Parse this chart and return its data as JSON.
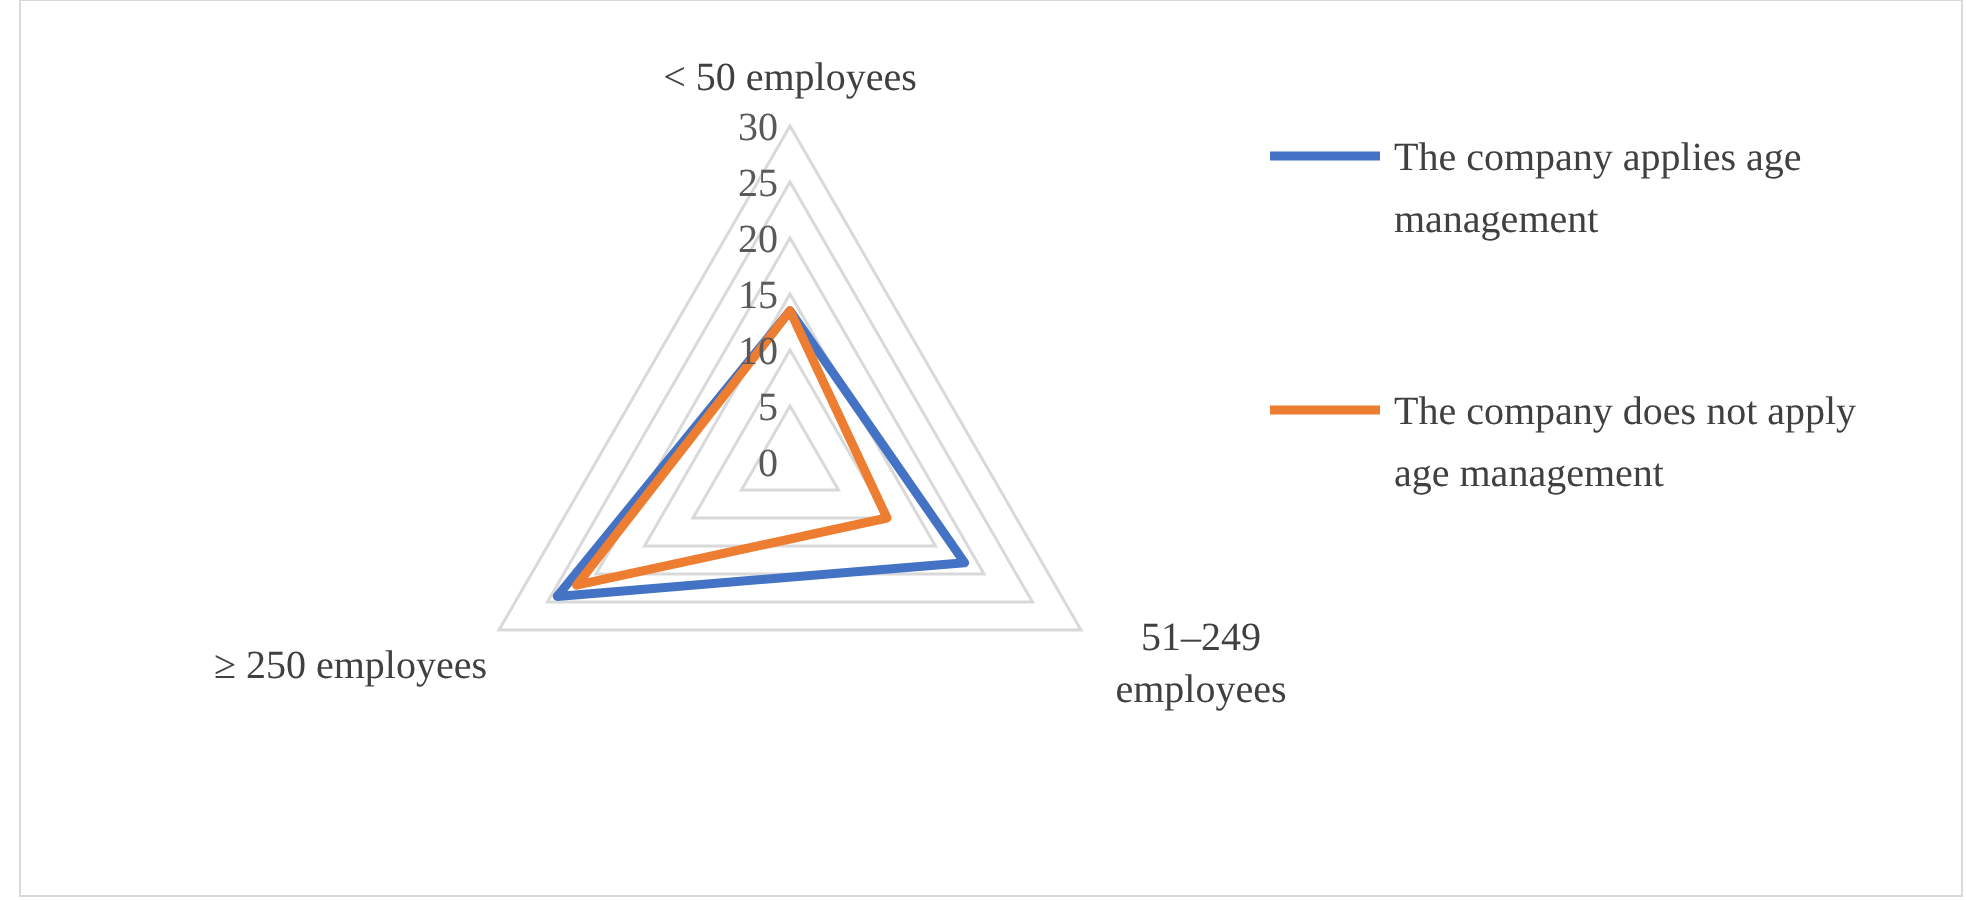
{
  "chart_data": {
    "type": "radar",
    "categories": [
      "< 50 employees",
      "51–249 employees",
      "≥ 250 employees"
    ],
    "ylim": [
      0,
      30
    ],
    "yticks": [
      0,
      5,
      10,
      15,
      20,
      25,
      30
    ],
    "grid": true,
    "legend": "right",
    "series": [
      {
        "name": "The company applies age management",
        "color": "#4472c4",
        "values": [
          13.5,
          18,
          24
        ]
      },
      {
        "name": "The company does not apply age management",
        "color": "#ed7d31",
        "values": [
          13.5,
          10,
          22
        ]
      }
    ]
  }
}
